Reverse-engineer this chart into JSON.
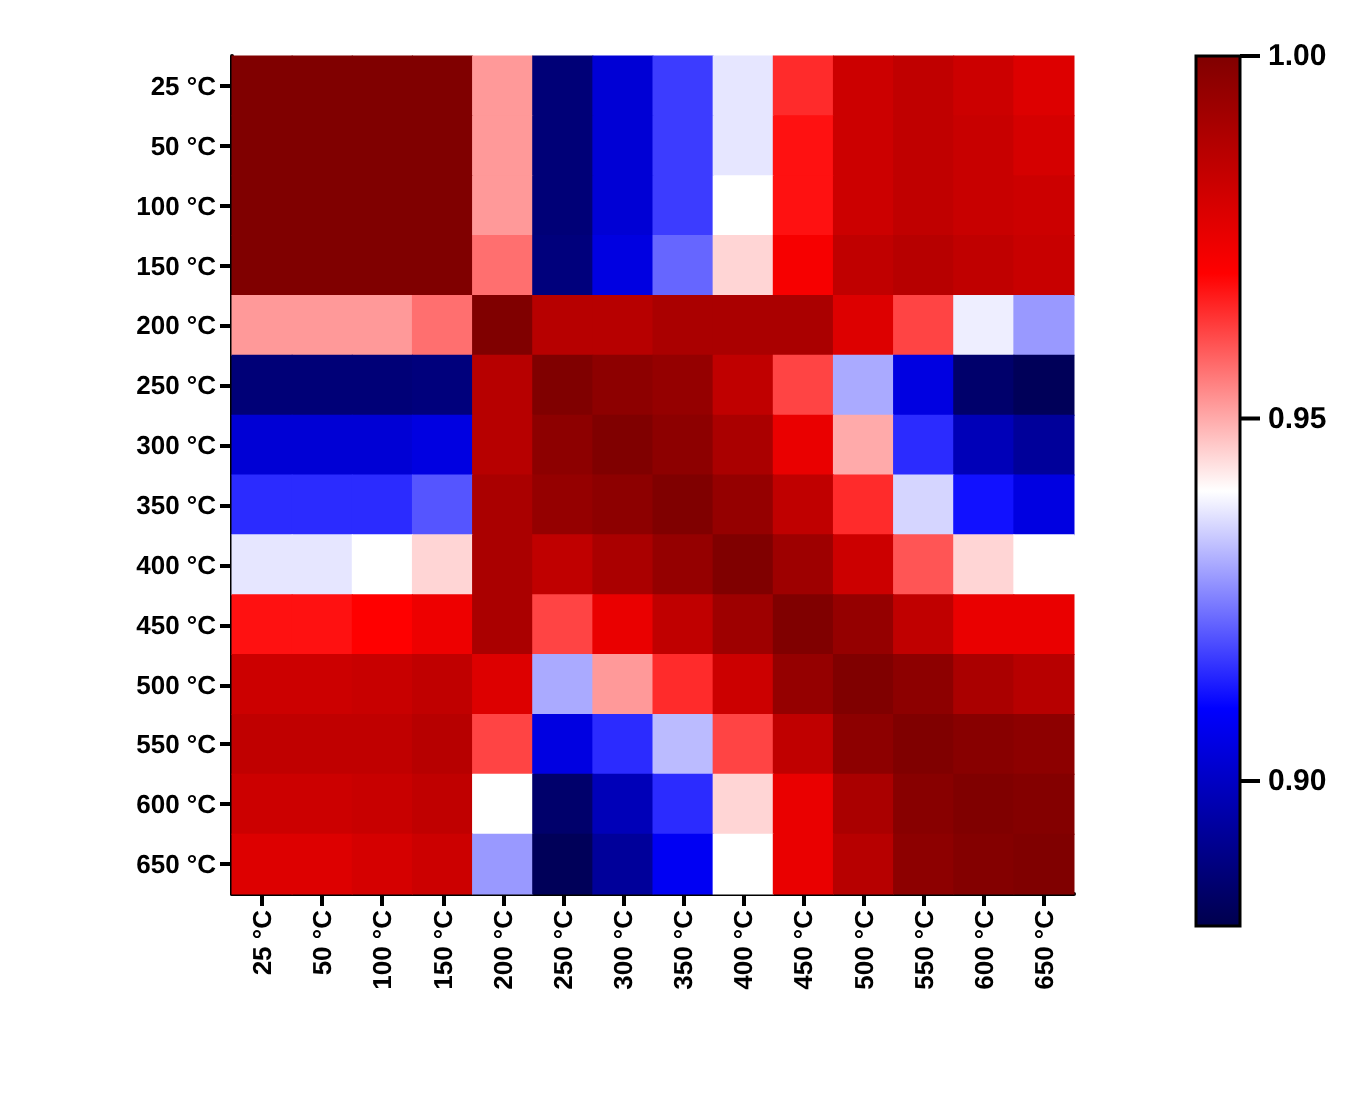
{
  "chart_data": {
    "type": "heatmap",
    "categories": [
      "25 °C",
      "50 °C",
      "100 °C",
      "150 °C",
      "200 °C",
      "250 °C",
      "300 °C",
      "350 °C",
      "400 °C",
      "450 °C",
      "500 °C",
      "550 °C",
      "600 °C",
      "650 °C"
    ],
    "y_categories": [
      "25 °C",
      "50 °C",
      "100 °C",
      "150 °C",
      "200 °C",
      "250 °C",
      "300 °C",
      "350 °C",
      "400 °C",
      "450 °C",
      "500 °C",
      "550 °C",
      "600 °C",
      "650 °C"
    ],
    "cells": [
      [
        1,
        1,
        1,
        1,
        0.952,
        0.887,
        0.903,
        0.917,
        0.937,
        0.965,
        0.982,
        0.985,
        0.982,
        0.978
      ],
      [
        1,
        1,
        1,
        1,
        0.952,
        0.887,
        0.903,
        0.917,
        0.937,
        0.968,
        0.982,
        0.985,
        0.983,
        0.98
      ],
      [
        1,
        1,
        1,
        1,
        0.952,
        0.887,
        0.903,
        0.917,
        0.94,
        0.968,
        0.982,
        0.985,
        0.983,
        0.982
      ],
      [
        1,
        1,
        1,
        1,
        0.957,
        0.888,
        0.905,
        0.922,
        0.945,
        0.972,
        0.985,
        0.987,
        0.985,
        0.983
      ],
      [
        0.952,
        0.952,
        0.952,
        0.957,
        1,
        0.987,
        0.987,
        0.99,
        0.99,
        0.99,
        0.978,
        0.962,
        0.938,
        0.928
      ],
      [
        0.887,
        0.887,
        0.887,
        0.888,
        0.987,
        1,
        0.997,
        0.995,
        0.985,
        0.962,
        0.93,
        0.905,
        0.885,
        0.882
      ],
      [
        0.903,
        0.903,
        0.903,
        0.905,
        0.987,
        0.997,
        1,
        0.997,
        0.99,
        0.975,
        0.95,
        0.915,
        0.898,
        0.893
      ],
      [
        0.915,
        0.915,
        0.915,
        0.92,
        0.99,
        0.995,
        0.997,
        1,
        0.995,
        0.985,
        0.965,
        0.935,
        0.912,
        0.905
      ],
      [
        0.937,
        0.937,
        0.94,
        0.945,
        0.99,
        0.985,
        0.99,
        0.995,
        1,
        0.993,
        0.982,
        0.96,
        0.945,
        0.94
      ],
      [
        0.968,
        0.968,
        0.97,
        0.974,
        0.99,
        0.962,
        0.975,
        0.985,
        0.993,
        1,
        0.995,
        0.985,
        0.975,
        0.975
      ],
      [
        0.982,
        0.982,
        0.983,
        0.985,
        0.978,
        0.93,
        0.952,
        0.965,
        0.982,
        0.995,
        1,
        0.997,
        0.99,
        0.987
      ],
      [
        0.985,
        0.985,
        0.985,
        0.987,
        0.962,
        0.905,
        0.915,
        0.932,
        0.962,
        0.985,
        0.997,
        1,
        0.998,
        0.997
      ],
      [
        0.982,
        0.982,
        0.983,
        0.985,
        0.94,
        0.885,
        0.898,
        0.915,
        0.945,
        0.975,
        0.99,
        0.998,
        1,
        0.999
      ],
      [
        0.978,
        0.978,
        0.98,
        0.982,
        0.928,
        0.882,
        0.893,
        0.908,
        0.94,
        0.975,
        0.987,
        0.997,
        0.999,
        1
      ]
    ],
    "clim": [
      0.88,
      1.0
    ],
    "cticks": [
      {
        "value": 0.9,
        "label": "0.90"
      },
      {
        "value": 0.95,
        "label": "0.95"
      },
      {
        "value": 1.0,
        "label": "1.00"
      }
    ]
  }
}
